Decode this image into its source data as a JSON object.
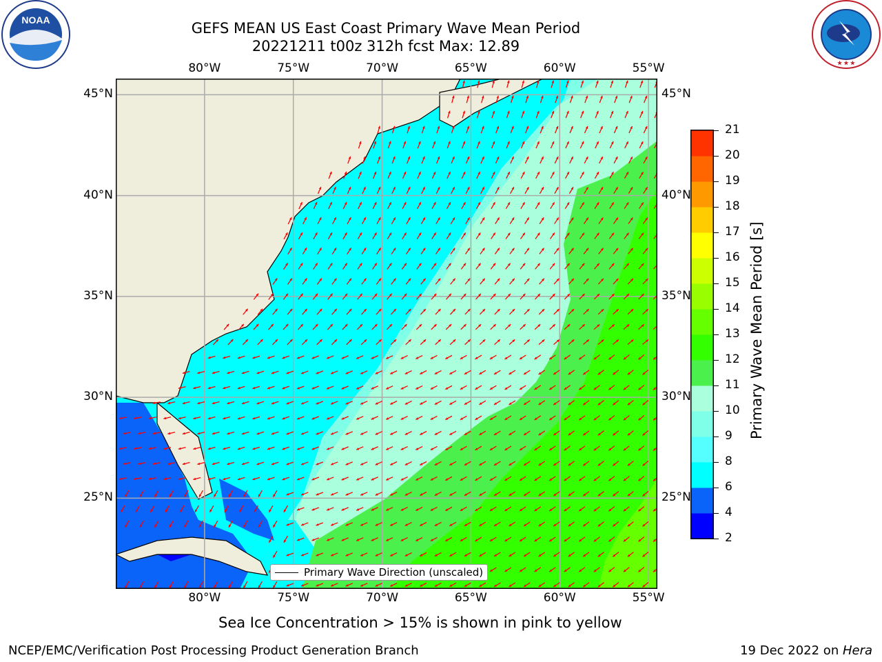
{
  "title": {
    "line1": "GEFS MEAN US East Coast Primary Wave Mean Period",
    "line2": "20221211 t00z 312h fcst   Max: 12.89"
  },
  "logos": {
    "left": "NOAA",
    "right": "NATIONAL WEATHER SERVICE"
  },
  "map": {
    "lon_ticks_top": [
      "80°W",
      "75°W",
      "70°W",
      "65°W",
      "60°W",
      "55°W"
    ],
    "lon_ticks_bottom": [
      "80°W",
      "75°W",
      "70°W",
      "65°W",
      "60°W",
      "55°W"
    ],
    "lat_ticks_left": [
      "45°N",
      "40°N",
      "35°N",
      "30°N",
      "25°N"
    ],
    "lat_ticks_right": [
      "45°N",
      "40°N",
      "35°N",
      "30°N",
      "25°N"
    ],
    "extent": {
      "lon": [
        -85,
        -54.5
      ],
      "lat": [
        20.5,
        45.8
      ]
    },
    "grid": true,
    "legend_label": "Primary Wave Direction (unscaled)",
    "arrow_color": "#ff0000",
    "land_color": "#efeedd"
  },
  "colorbar": {
    "label": "Primary Wave Mean Period [s]",
    "ticks": [
      "2",
      "4",
      "6",
      "8",
      "9",
      "10",
      "11",
      "12",
      "13",
      "14",
      "15",
      "16",
      "17",
      "18",
      "19",
      "20",
      "21"
    ],
    "colors": [
      "#0000ff",
      "#0a64fa",
      "#00ffff",
      "#55ffff",
      "#7fffe8",
      "#aaffdc",
      "#4cf04c",
      "#33ff00",
      "#66ff00",
      "#99ff00",
      "#ccff00",
      "#ffff00",
      "#ffcc00",
      "#ff9900",
      "#ff6600",
      "#ff3300",
      "#ff0000"
    ]
  },
  "caption": "Sea Ice Concentration > 15% is shown in pink to yellow",
  "footer": {
    "left": "NCEP/EMC/Verification Post Processing Product Generation Branch",
    "right_date": "19 Dec 2022 on ",
    "right_host": "Hera"
  }
}
